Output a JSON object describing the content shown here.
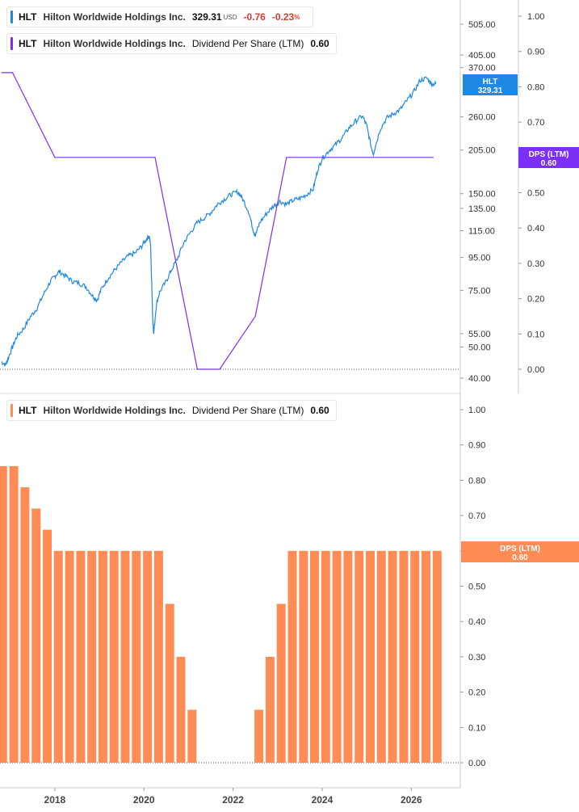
{
  "legend_price": {
    "ticker": "HLT",
    "company": "Hilton Worldwide Holdings Inc.",
    "price": "329.31",
    "currency": "USD",
    "change": "-0.76",
    "change_pct": "-0.23",
    "pct_sign": "%"
  },
  "legend_dps_top": {
    "ticker": "HLT",
    "company": "Hilton Worldwide Holdings Inc.",
    "metric": "Dividend Per Share (LTM)",
    "value": "0.60"
  },
  "legend_dps_bottom": {
    "ticker": "HLT",
    "company": "Hilton Worldwide Holdings Inc.",
    "metric": "Dividend Per Share (LTM)",
    "value": "0.60"
  },
  "badges": {
    "price": {
      "label": "HLT",
      "value": "329.31"
    },
    "dps_top": {
      "label": "DPS (LTM)",
      "value": "0.60"
    },
    "dps_bottom": {
      "label": "DPS (LTM)",
      "value": "0.60"
    }
  },
  "colors": {
    "price_line": "#1e88e5",
    "dps_line": "#7b2ff7",
    "dps_bar": "#ff8c55",
    "grid": "#cccccc",
    "axis_text": "#333333"
  },
  "chart_data": [
    {
      "type": "line",
      "name": "price-panel",
      "series": [
        {
          "name": "HLT",
          "scale": "log",
          "points": [
            [
              2016.8,
              45
            ],
            [
              2016.9,
              44
            ],
            [
              2016.95,
              46
            ],
            [
              2017.05,
              50
            ],
            [
              2017.15,
              54
            ],
            [
              2017.3,
              57
            ],
            [
              2017.45,
              62
            ],
            [
              2017.6,
              66
            ],
            [
              2017.75,
              73
            ],
            [
              2017.9,
              80
            ],
            [
              2018.0,
              83
            ],
            [
              2018.1,
              86
            ],
            [
              2018.25,
              83
            ],
            [
              2018.4,
              80
            ],
            [
              2018.55,
              79
            ],
            [
              2018.7,
              77
            ],
            [
              2018.85,
              72
            ],
            [
              2018.95,
              70
            ],
            [
              2019.05,
              76
            ],
            [
              2019.2,
              82
            ],
            [
              2019.35,
              87
            ],
            [
              2019.5,
              92
            ],
            [
              2019.65,
              96
            ],
            [
              2019.8,
              98
            ],
            [
              2019.95,
              103
            ],
            [
              2020.05,
              108
            ],
            [
              2020.12,
              111
            ],
            [
              2020.15,
              103
            ],
            [
              2020.2,
              60
            ],
            [
              2020.22,
              55
            ],
            [
              2020.28,
              68
            ],
            [
              2020.35,
              74
            ],
            [
              2020.5,
              80
            ],
            [
              2020.6,
              86
            ],
            [
              2020.75,
              94
            ],
            [
              2020.9,
              106
            ],
            [
              2021.05,
              114
            ],
            [
              2021.2,
              122
            ],
            [
              2021.35,
              126
            ],
            [
              2021.5,
              131
            ],
            [
              2021.65,
              139
            ],
            [
              2021.8,
              144
            ],
            [
              2021.95,
              149
            ],
            [
              2022.1,
              152
            ],
            [
              2022.2,
              146
            ],
            [
              2022.35,
              132
            ],
            [
              2022.45,
              116
            ],
            [
              2022.5,
              111
            ],
            [
              2022.6,
              122
            ],
            [
              2022.75,
              130
            ],
            [
              2022.9,
              137
            ],
            [
              2023.05,
              142
            ],
            [
              2023.2,
              139
            ],
            [
              2023.35,
              143
            ],
            [
              2023.5,
              145
            ],
            [
              2023.65,
              149
            ],
            [
              2023.8,
              155
            ],
            [
              2023.9,
              178
            ],
            [
              2024.0,
              193
            ],
            [
              2024.15,
              204
            ],
            [
              2024.3,
              213
            ],
            [
              2024.45,
              224
            ],
            [
              2024.6,
              240
            ],
            [
              2024.75,
              252
            ],
            [
              2024.9,
              262
            ],
            [
              2025.0,
              244
            ],
            [
              2025.1,
              210
            ],
            [
              2025.15,
              200
            ],
            [
              2025.3,
              238
            ],
            [
              2025.45,
              258
            ],
            [
              2025.6,
              266
            ],
            [
              2025.75,
              274
            ],
            [
              2025.9,
              292
            ],
            [
              2026.05,
              310
            ],
            [
              2026.2,
              338
            ],
            [
              2026.35,
              343
            ],
            [
              2026.45,
              330
            ],
            [
              2026.55,
              329.31
            ]
          ]
        },
        {
          "name": "DPS (LTM)",
          "scale": "linear",
          "points": [
            [
              2016.8,
              0.84
            ],
            [
              2017.05,
              0.84
            ],
            [
              2018.0,
              0.6
            ],
            [
              2020.25,
              0.6
            ],
            [
              2021.2,
              0.0
            ],
            [
              2021.7,
              0.0
            ],
            [
              2022.5,
              0.15
            ],
            [
              2023.2,
              0.6
            ],
            [
              2026.5,
              0.6
            ]
          ]
        }
      ],
      "y_left_ticks": [
        505,
        405,
        370,
        260,
        205,
        150,
        135,
        115,
        95,
        75,
        55,
        50,
        40
      ],
      "y_left_labels": [
        "505.00",
        "405.00",
        "370.00",
        "260.00",
        "205.00",
        "150.00",
        "135.00",
        "115.00",
        "95.00",
        "75.00",
        "55.00",
        "50.00",
        "40.00"
      ],
      "y_left_range": [
        38,
        620
      ],
      "y_right_ticks": [
        1.0,
        0.9,
        0.8,
        0.7,
        0.6,
        0.5,
        0.4,
        0.3,
        0.2,
        0.1,
        0.0
      ],
      "y_right_labels": [
        "1.00",
        "0.90",
        "0.80",
        "0.70",
        "",
        "0.50",
        "0.40",
        "0.30",
        "0.20",
        "0.10",
        "0.00"
      ]
    },
    {
      "type": "bar",
      "name": "dps-bars",
      "series": [
        {
          "name": "DPS (LTM)",
          "x": [
            2016.83,
            2017.08,
            2017.33,
            2017.58,
            2017.83,
            2018.08,
            2018.33,
            2018.58,
            2018.83,
            2019.08,
            2019.33,
            2019.58,
            2019.83,
            2020.08,
            2020.33,
            2020.58,
            2020.83,
            2021.08,
            2021.33,
            2021.58,
            2021.83,
            2022.08,
            2022.33,
            2022.58,
            2022.83,
            2023.08,
            2023.33,
            2023.58,
            2023.83,
            2024.08,
            2024.33,
            2024.58,
            2024.83,
            2025.08,
            2025.33,
            2025.58,
            2025.83,
            2026.08,
            2026.33,
            2026.58
          ],
          "values": [
            0.84,
            0.84,
            0.78,
            0.72,
            0.66,
            0.6,
            0.6,
            0.6,
            0.6,
            0.6,
            0.6,
            0.6,
            0.6,
            0.6,
            0.6,
            0.45,
            0.3,
            0.15,
            0,
            0,
            0,
            0,
            0,
            0.15,
            0.3,
            0.45,
            0.6,
            0.6,
            0.6,
            0.6,
            0.6,
            0.6,
            0.6,
            0.6,
            0.6,
            0.6,
            0.6,
            0.6,
            0.6,
            0.6
          ]
        }
      ],
      "y_ticks": [
        1.0,
        0.9,
        0.8,
        0.7,
        0.6,
        0.5,
        0.4,
        0.3,
        0.2,
        0.1,
        0.0
      ],
      "y_labels": [
        "1.00",
        "0.90",
        "0.80",
        "0.70",
        "0.60",
        "0.50",
        "0.40",
        "0.30",
        "0.20",
        "0.10",
        "0.00"
      ],
      "ylim": [
        0,
        1.0
      ]
    }
  ],
  "x_axis": {
    "range": [
      2016.77,
      2027.1
    ],
    "ticks": [
      2018,
      2020,
      2022,
      2024,
      2026
    ],
    "labels": [
      "2018",
      "2020",
      "2022",
      "2024",
      "2026"
    ]
  }
}
